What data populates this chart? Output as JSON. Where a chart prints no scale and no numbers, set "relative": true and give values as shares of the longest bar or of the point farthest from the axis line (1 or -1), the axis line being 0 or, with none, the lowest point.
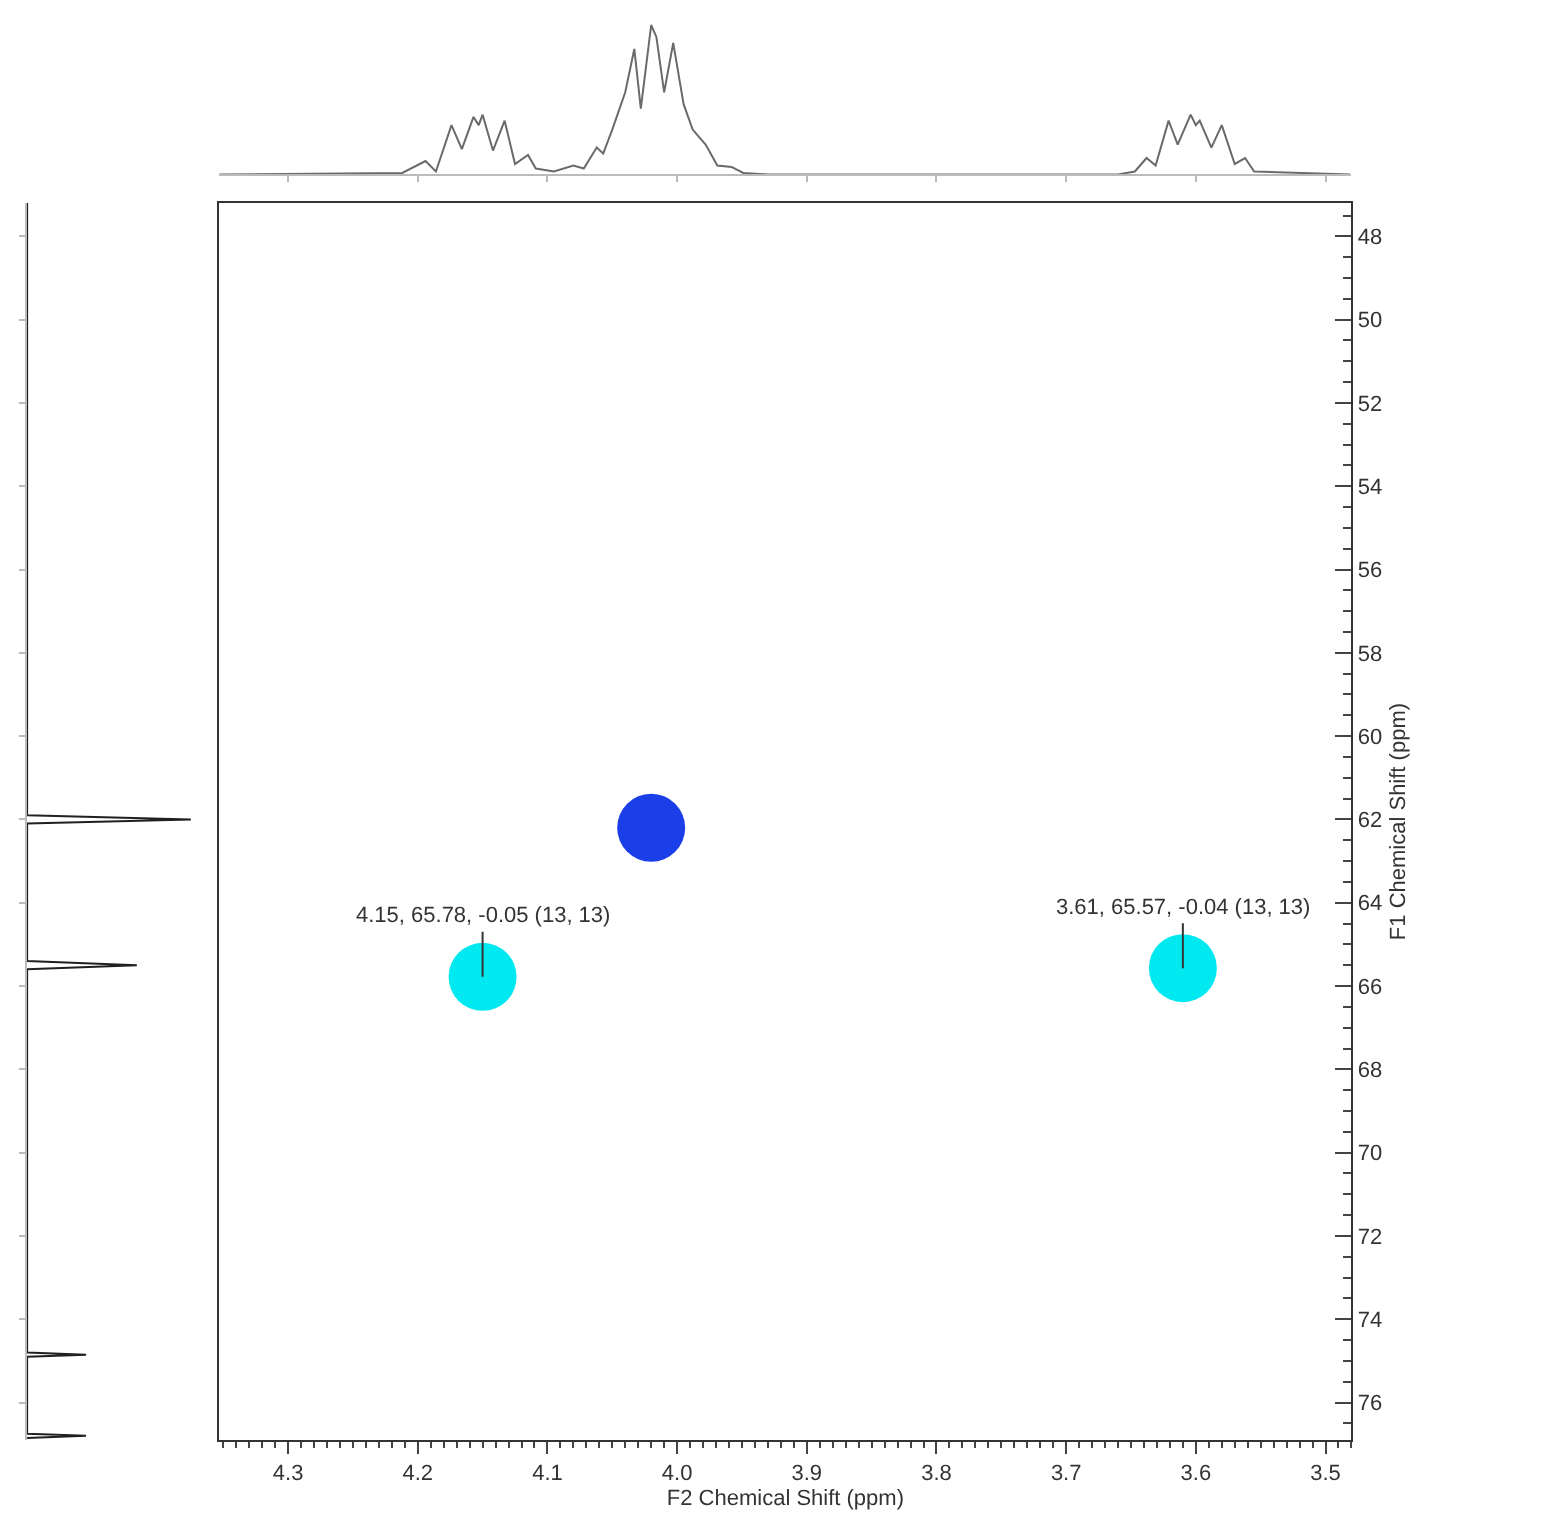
{
  "chart_data": [
    {
      "type": "line",
      "relative": true,
      "tick_labels": false,
      "color": "#6a6a6a",
      "xlim": [
        4.353,
        3.48
      ],
      "xticks": [
        4.3,
        4.2,
        4.1,
        4.0,
        3.9,
        3.8,
        3.7,
        3.6,
        3.5
      ],
      "x": [
        4.353,
        4.212,
        4.194,
        4.186,
        4.174,
        4.166,
        4.157,
        4.153,
        4.15,
        4.142,
        4.133,
        4.125,
        4.115,
        4.109,
        4.095,
        4.08,
        4.072,
        4.062,
        4.057,
        4.05,
        4.04,
        4.033,
        4.028,
        4.02,
        4.016,
        4.01,
        4.003,
        3.995,
        3.988,
        3.983,
        3.978,
        3.969,
        3.958,
        3.949,
        3.93,
        3.66,
        3.647,
        3.638,
        3.631,
        3.621,
        3.614,
        3.604,
        3.6,
        3.597,
        3.588,
        3.58,
        3.57,
        3.562,
        3.555,
        3.481
      ],
      "values": [
        0,
        0.01,
        0.09,
        0.02,
        0.33,
        0.17,
        0.385,
        0.33,
        0.4,
        0.16,
        0.36,
        0.07,
        0.13,
        0.04,
        0.02,
        0.06,
        0.04,
        0.18,
        0.14,
        0.3,
        0.55,
        0.84,
        0.44,
        1.0,
        0.92,
        0.55,
        0.88,
        0.47,
        0.3,
        0.25,
        0.2,
        0.06,
        0.05,
        0.01,
        0,
        0,
        0.02,
        0.11,
        0.06,
        0.36,
        0.2,
        0.4,
        0.33,
        0.36,
        0.18,
        0.33,
        0.07,
        0.11,
        0.02,
        0
      ]
    },
    {
      "type": "line",
      "relative": true,
      "orientation": "horizontal",
      "tick_labels": false,
      "color": "#202020",
      "ylim": [
        76.9,
        47.2
      ],
      "yticks": [
        48,
        50,
        52,
        54,
        56,
        58,
        60,
        62,
        64,
        66,
        68,
        70,
        72,
        74,
        76
      ],
      "x": [
        47.2,
        61.9,
        62.0,
        62.1,
        65.4,
        65.5,
        65.6,
        74.8,
        74.85,
        74.9,
        76.75,
        76.8,
        76.85
      ],
      "values": [
        0,
        0,
        1,
        0,
        0,
        0.67,
        0,
        0,
        0.36,
        0,
        0,
        0.36,
        0
      ]
    },
    {
      "type": "scatter",
      "marker": "circle",
      "xlabel": "F2 Chemical Shift (ppm)",
      "ylabel": "F1 Chemical Shift (ppm)",
      "xlim": [
        4.353,
        3.48
      ],
      "xticks": [
        4.3,
        4.2,
        4.1,
        {
          "value": 4.0,
          "label": "4.0"
        },
        3.9,
        3.8,
        3.7,
        3.6,
        3.5
      ],
      "ylim": [
        76.9,
        47.2
      ],
      "yticks": [
        48,
        50,
        52,
        54,
        56,
        58,
        60,
        62,
        64,
        66,
        68,
        70,
        72,
        74,
        76
      ],
      "x": [
        4.02,
        4.15,
        3.61
      ],
      "values": [
        62.2,
        65.78,
        65.57
      ],
      "colors": [
        "#1a3ee8",
        "#00e8f0",
        "#00e8f0"
      ],
      "annotations": [
        {
          "text": "4.15, 65.78, -0.05 (13, 13)",
          "x": 4.15,
          "y": 65.78
        },
        {
          "text": "3.61, 65.57, -0.04 (13, 13)",
          "x": 3.61,
          "y": 65.57
        }
      ]
    }
  ]
}
